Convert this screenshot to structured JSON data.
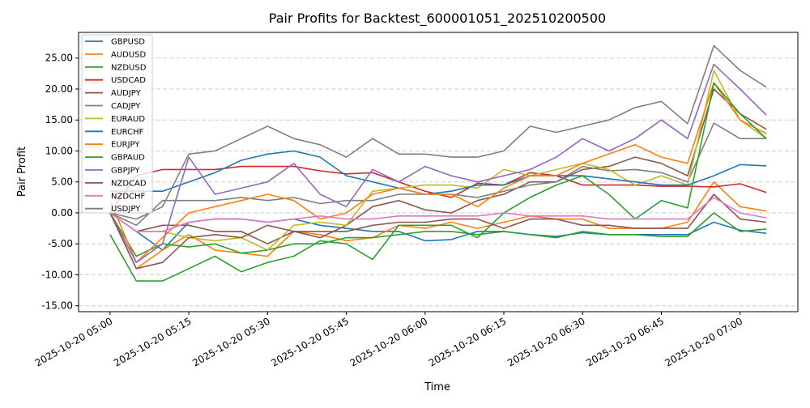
{
  "chart_data": {
    "type": "line",
    "title": "Pair Profits for Backtest_600001051_202510200500",
    "xlabel": "Time",
    "ylabel": "Pair Profit",
    "date": "2025-10-20",
    "xlim": [
      "04:54",
      "07:11"
    ],
    "ylim": [
      -15.95,
      29.15
    ],
    "yticks": [
      -15,
      -10,
      -5,
      0,
      5,
      10,
      15,
      20,
      25
    ],
    "ytick_labels": [
      "-15.00",
      "-10.00",
      "-5.00",
      "0.00",
      "5.00",
      "10.00",
      "15.00",
      "20.00",
      "25.00"
    ],
    "xticks": [
      "05:00",
      "05:15",
      "05:30",
      "05:45",
      "06:00",
      "06:15",
      "06:30",
      "06:45",
      "07:00"
    ],
    "xtick_labels": [
      "2025-10-20 05:00",
      "2025-10-20 05:15",
      "2025-10-20 05:30",
      "2025-10-20 05:45",
      "2025-10-20 06:00",
      "2025-10-20 06:15",
      "2025-10-20 06:30",
      "2025-10-20 06:45",
      "2025-10-20 07:00"
    ],
    "grid": "y dashed",
    "legend_position": "top-left",
    "x": [
      "05:00",
      "05:05",
      "05:10",
      "05:15",
      "05:20",
      "05:25",
      "05:30",
      "05:35",
      "05:40",
      "05:45",
      "05:50",
      "05:55",
      "06:00",
      "06:05",
      "06:10",
      "06:15",
      "06:20",
      "06:25",
      "06:30",
      "06:35",
      "06:40",
      "06:45",
      "06:50",
      "06:55",
      "07:00",
      "07:05"
    ],
    "series": [
      {
        "name": "GBPUSD",
        "color": "#1f77b4",
        "values": [
          0,
          -3,
          -6,
          -1.5,
          -1,
          -1,
          -1.5,
          -1,
          -2,
          -2.5,
          -3,
          -3,
          -4.5,
          -4.3,
          -3,
          -3,
          -3.5,
          -3.8,
          -3.2,
          -3.5,
          -3.5,
          -3.5,
          -3.5,
          -1.5,
          -2.8,
          -3.3
        ]
      },
      {
        "name": "AUDUSD",
        "color": "#ff7f0e",
        "values": [
          0,
          -9,
          -6,
          -3.5,
          -6,
          -6.5,
          -7,
          -3,
          -3.5,
          -4.5,
          -4,
          -2,
          -2.5,
          -1.5,
          -2.5,
          -1.5,
          -0.5,
          -1,
          -1,
          -2.5,
          -2.5,
          -2.5,
          -1.5,
          5,
          1,
          0.3
        ]
      },
      {
        "name": "NZDUSD",
        "color": "#2ca02c",
        "values": [
          0,
          -7,
          -5,
          -5.5,
          -5,
          -6.5,
          -6,
          -5,
          -5,
          -4,
          -4,
          -3.5,
          -3,
          -3,
          -3.5,
          -3,
          -3.5,
          -4,
          -3,
          -3.5,
          -3.5,
          -3.8,
          -3.8,
          0,
          -3,
          -2.6
        ]
      },
      {
        "name": "USDCAD",
        "color": "#d62728",
        "values": [
          0,
          6,
          7,
          7,
          7,
          7.5,
          7.5,
          7.5,
          6.8,
          6.3,
          6.5,
          5,
          3.5,
          2.5,
          4.8,
          4.5,
          6.5,
          6,
          4.5,
          4.5,
          4.5,
          4.3,
          4.3,
          4.2,
          4.7,
          3.3
        ]
      },
      {
        "name": "AUDJPY",
        "color": "#8c564b",
        "values": [
          0,
          -3,
          -2,
          -2,
          -3,
          -3,
          -5,
          -3,
          -4,
          -2,
          1,
          2,
          0.5,
          0,
          2,
          3,
          5,
          5,
          7,
          7.5,
          9,
          8,
          6,
          20,
          16,
          13.5
        ]
      },
      {
        "name": "CADJPY",
        "color": "#7f7f7f",
        "values": [
          0,
          -2,
          2,
          2,
          2,
          2.5,
          2,
          2.5,
          1.5,
          2,
          2,
          3,
          3,
          3,
          2.5,
          3.5,
          4.5,
          5,
          7.5,
          6.8,
          7,
          6.5,
          5,
          14.5,
          12,
          12
        ]
      },
      {
        "name": "EURAUD",
        "color": "#bcbd22",
        "values": [
          0,
          -3,
          -3,
          -4,
          -4.5,
          -4,
          -6,
          -2,
          -1.5,
          -2,
          3.5,
          4,
          4.5,
          4.5,
          4,
          7,
          6,
          7,
          8,
          7,
          4.5,
          6,
          4.5,
          23,
          15,
          12
        ]
      },
      {
        "name": "EURCHF",
        "color": "#1f77b4",
        "values": [
          3.5,
          3.5,
          3.5,
          5,
          6.5,
          8.5,
          9.5,
          10,
          9,
          6,
          5,
          4,
          3,
          3.5,
          4.5,
          4.5,
          6,
          6,
          6,
          5.5,
          5,
          4.5,
          4.5,
          6,
          7.8,
          7.6
        ]
      },
      {
        "name": "EURJPY",
        "color": "#ff7f0e",
        "values": [
          2,
          -8,
          -4,
          0,
          1,
          2,
          3,
          2,
          -1,
          0,
          3,
          4,
          3,
          3,
          1,
          4,
          6,
          6,
          8,
          9.5,
          11,
          9,
          8,
          21,
          15,
          12.8
        ]
      },
      {
        "name": "GBPAUD",
        "color": "#2ca02c",
        "values": [
          -3.5,
          -11,
          -11,
          -9,
          -7,
          -9.5,
          -8,
          -7,
          -4.5,
          -5,
          -7.5,
          -2,
          -2,
          -2,
          -4,
          0,
          2.5,
          4.5,
          6,
          3,
          -1,
          2,
          0.8,
          21,
          16,
          12
        ]
      },
      {
        "name": "GBPJPY",
        "color": "#9467bd",
        "values": [
          0,
          -8,
          -5,
          9,
          3,
          4,
          5,
          8,
          3,
          1,
          7,
          5,
          7.5,
          6,
          5,
          6,
          7,
          9,
          12,
          10,
          12,
          15,
          12,
          24,
          20,
          15.8
        ]
      },
      {
        "name": "NZDCAD",
        "color": "#8c564b",
        "values": [
          0,
          -9,
          -8,
          -4,
          -3.5,
          -4,
          -2,
          -3,
          -3,
          -3,
          -2,
          -1.5,
          -1.5,
          -1,
          -1,
          -2.5,
          -1,
          -1,
          -2,
          -2,
          -2.5,
          -2.5,
          -2.5,
          3,
          -1,
          -1.5
        ]
      },
      {
        "name": "NZDCHF",
        "color": "#e377c2",
        "values": [
          0,
          -3,
          -3,
          -1.5,
          -1,
          -1,
          -1.5,
          -1,
          -0.5,
          -1,
          -1,
          -0.5,
          -0.5,
          -0.5,
          -0.5,
          0,
          -0.5,
          -0.5,
          -0.5,
          -1,
          -1,
          -1,
          -1,
          2.5,
          0,
          -0.8
        ]
      },
      {
        "name": "USDJPY",
        "color": "#7f7f7f",
        "values": [
          0,
          -1,
          1,
          9.5,
          10,
          12,
          14,
          12,
          11,
          9,
          12,
          9.5,
          9.5,
          9,
          9,
          10,
          14,
          13,
          14,
          15,
          17,
          18,
          14.4,
          27,
          23,
          20.3
        ]
      }
    ]
  }
}
